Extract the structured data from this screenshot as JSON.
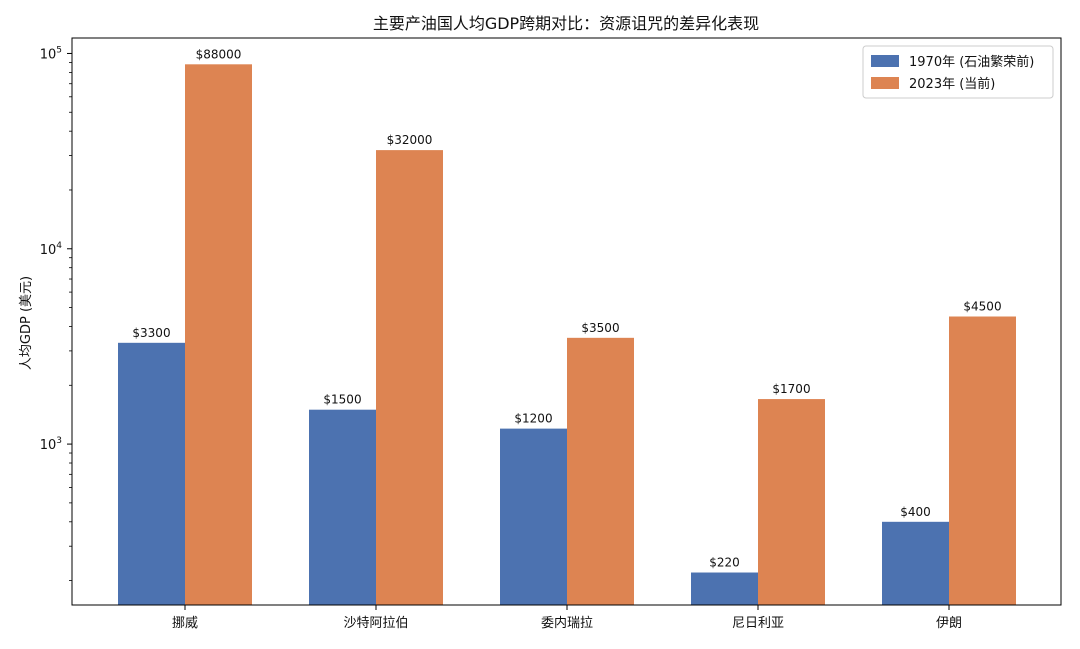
{
  "chart_data": {
    "type": "bar",
    "title": "主要产油国人均GDP跨期对比：资源诅咒的差异化表现",
    "xlabel": "",
    "ylabel": "人均GDP (美元)",
    "yscale": "log",
    "ylim": [
      150,
      120000
    ],
    "yticks": [
      {
        "value": 1000,
        "label": "10",
        "exp": "3"
      },
      {
        "value": 10000,
        "label": "10",
        "exp": "4"
      },
      {
        "value": 100000,
        "label": "10",
        "exp": "5"
      }
    ],
    "categories": [
      "挪威",
      "沙特阿拉伯",
      "委内瑞拉",
      "尼日利亚",
      "伊朗"
    ],
    "series": [
      {
        "name": "1970年 (石油繁荣前)",
        "color": "#4c72b0",
        "values": [
          3300,
          1500,
          1200,
          220,
          400
        ],
        "labels": [
          "$3300",
          "$1500",
          "$1200",
          "$220",
          "$400"
        ]
      },
      {
        "name": "2023年 (当前)",
        "color": "#dd8452",
        "values": [
          88000,
          32000,
          3500,
          1700,
          4500
        ],
        "labels": [
          "$88000",
          "$32000",
          "$3500",
          "$1700",
          "$4500"
        ]
      }
    ],
    "legend": "top-right",
    "grid": false
  }
}
